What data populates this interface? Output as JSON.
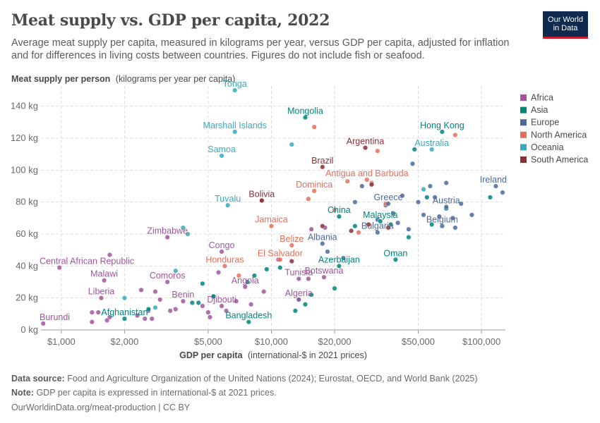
{
  "header": {
    "title": "Meat supply vs. GDP per capita, 2022",
    "subtitle": "Average meat supply per capita, measured in kilograms per year, versus GDP per capita, adjusted for inflation and for differences in living costs between countries. Figures do not include fish or seafood.",
    "logo_line1": "Our World",
    "logo_line2": "in Data"
  },
  "footer": {
    "source_label": "Data source:",
    "source_text": "Food and Agriculture Organization of the United Nations (2024); Eurostat, OECD, and World Bank (2025)",
    "note_label": "Note:",
    "note_text": "GDP per capita is expressed in international-$ at 2021 prices.",
    "url": "OurWorldinData.org/meat-production | CC BY"
  },
  "chart_data": {
    "type": "scatter",
    "title": "Meat supply vs. GDP per capita, 2022",
    "ylabel_bold": "Meat supply per person",
    "ylabel_unit": "(kilograms per year per capita)",
    "xlabel_bold": "GDP per capita",
    "xlabel_unit": "(international-$ in 2021 prices)",
    "x_scale": "log",
    "xlim": [
      800,
      130000
    ],
    "ylim": [
      0,
      150
    ],
    "x_ticks": [
      1000,
      2000,
      5000,
      10000,
      20000,
      50000,
      100000
    ],
    "x_tick_labels": [
      "$1,000",
      "$2,000",
      "$5,000",
      "$10,000",
      "$20,000",
      "$50,000",
      "$100,000"
    ],
    "y_ticks": [
      0,
      20,
      40,
      60,
      80,
      100,
      120,
      140
    ],
    "y_tick_labels": [
      "0 kg",
      "20 kg",
      "40 kg",
      "60 kg",
      "80 kg",
      "100 kg",
      "120 kg",
      "140 kg"
    ],
    "grid": true,
    "legend_position": "right",
    "regions": [
      {
        "name": "Africa",
        "color": "#a2559c"
      },
      {
        "name": "Asia",
        "color": "#00847e"
      },
      {
        "name": "Europe",
        "color": "#4c6a9c"
      },
      {
        "name": "North America",
        "color": "#e56e5a"
      },
      {
        "name": "Oceania",
        "color": "#38aaba"
      },
      {
        "name": "South America",
        "color": "#883039"
      }
    ],
    "labeled_points": [
      {
        "label": "Tonga",
        "x": 6700,
        "y": 150,
        "region": "Oceania"
      },
      {
        "label": "Mongolia",
        "x": 14500,
        "y": 133,
        "region": "Asia"
      },
      {
        "label": "Marshall Islands",
        "x": 6700,
        "y": 124,
        "region": "Oceania"
      },
      {
        "label": "Hong Kong",
        "x": 65000,
        "y": 124,
        "region": "Asia"
      },
      {
        "label": "Argentina",
        "x": 28000,
        "y": 114,
        "region": "South America"
      },
      {
        "label": "Australia",
        "x": 58000,
        "y": 113,
        "region": "Oceania"
      },
      {
        "label": "Samoa",
        "x": 5800,
        "y": 109,
        "region": "Oceania"
      },
      {
        "label": "Brazil",
        "x": 17500,
        "y": 102,
        "region": "South America"
      },
      {
        "label": "Antigua and Barbuda",
        "x": 28500,
        "y": 94,
        "region": "North America"
      },
      {
        "label": "Ireland",
        "x": 117000,
        "y": 90,
        "region": "Europe"
      },
      {
        "label": "Dominica",
        "x": 16000,
        "y": 87,
        "region": "North America"
      },
      {
        "label": "Bolivia",
        "x": 9000,
        "y": 81,
        "region": "South America"
      },
      {
        "label": "Greece",
        "x": 36000,
        "y": 79,
        "region": "Europe"
      },
      {
        "label": "Austria",
        "x": 68000,
        "y": 77,
        "region": "Europe"
      },
      {
        "label": "Tuvalu",
        "x": 6200,
        "y": 78,
        "region": "Oceania"
      },
      {
        "label": "China",
        "x": 21000,
        "y": 71,
        "region": "Asia"
      },
      {
        "label": "Malaysia",
        "x": 33000,
        "y": 68,
        "region": "Asia"
      },
      {
        "label": "Belgium",
        "x": 65000,
        "y": 65,
        "region": "Europe"
      },
      {
        "label": "Jamaica",
        "x": 10000,
        "y": 65,
        "region": "North America"
      },
      {
        "label": "Bulgaria",
        "x": 32000,
        "y": 61,
        "region": "Europe"
      },
      {
        "label": "Zimbabwe",
        "x": 3200,
        "y": 58,
        "region": "Africa"
      },
      {
        "label": "Albania",
        "x": 17500,
        "y": 54,
        "region": "Europe"
      },
      {
        "label": "Belize",
        "x": 12500,
        "y": 53,
        "region": "North America"
      },
      {
        "label": "Congo",
        "x": 5800,
        "y": 49,
        "region": "Africa"
      },
      {
        "label": "Oman",
        "x": 39000,
        "y": 44,
        "region": "Asia"
      },
      {
        "label": "El Salvador",
        "x": 11000,
        "y": 44,
        "region": "North America"
      },
      {
        "label": "Honduras",
        "x": 6000,
        "y": 40,
        "region": "North America"
      },
      {
        "label": "Azerbaijan",
        "x": 21000,
        "y": 40,
        "region": "Asia"
      },
      {
        "label": "Central African Republic",
        "x": 980,
        "y": 39,
        "region": "Africa"
      },
      {
        "label": "Botswana",
        "x": 17800,
        "y": 33,
        "region": "Africa"
      },
      {
        "label": "Tunisia",
        "x": 13500,
        "y": 32,
        "region": "Africa"
      },
      {
        "label": "Malawi",
        "x": 1600,
        "y": 31,
        "region": "Africa"
      },
      {
        "label": "Comoros",
        "x": 3200,
        "y": 30,
        "region": "Africa"
      },
      {
        "label": "Angola",
        "x": 7500,
        "y": 27,
        "region": "Africa"
      },
      {
        "label": "Liberia",
        "x": 1550,
        "y": 20,
        "region": "Africa"
      },
      {
        "label": "Algeria",
        "x": 13500,
        "y": 19,
        "region": "Africa"
      },
      {
        "label": "Benin",
        "x": 3800,
        "y": 18,
        "region": "Africa"
      },
      {
        "label": "Djibouti",
        "x": 5800,
        "y": 15,
        "region": "Africa"
      },
      {
        "label": "Afghanistan",
        "x": 2000,
        "y": 7,
        "region": "Asia"
      },
      {
        "label": "Bangladesh",
        "x": 7800,
        "y": 5,
        "region": "Asia"
      },
      {
        "label": "Burundi",
        "x": 820,
        "y": 4,
        "region": "Africa"
      }
    ],
    "unlabeled_points": [
      {
        "x": 1400,
        "y": 5,
        "region": "Africa"
      },
      {
        "x": 1400,
        "y": 11,
        "region": "Africa"
      },
      {
        "x": 1500,
        "y": 11,
        "region": "Africa"
      },
      {
        "x": 1650,
        "y": 6,
        "region": "Africa"
      },
      {
        "x": 1700,
        "y": 8,
        "region": "Africa"
      },
      {
        "x": 1700,
        "y": 47,
        "region": "Africa"
      },
      {
        "x": 2300,
        "y": 9,
        "region": "Africa"
      },
      {
        "x": 2400,
        "y": 25,
        "region": "Africa"
      },
      {
        "x": 2500,
        "y": 7,
        "region": "Africa"
      },
      {
        "x": 2600,
        "y": 12,
        "region": "Africa"
      },
      {
        "x": 2700,
        "y": 7,
        "region": "Africa"
      },
      {
        "x": 2800,
        "y": 24,
        "region": "Africa"
      },
      {
        "x": 2950,
        "y": 19,
        "region": "Africa"
      },
      {
        "x": 3300,
        "y": 12,
        "region": "Africa"
      },
      {
        "x": 3500,
        "y": 13,
        "region": "Africa"
      },
      {
        "x": 4700,
        "y": 15,
        "region": "Africa"
      },
      {
        "x": 5000,
        "y": 11,
        "region": "Africa"
      },
      {
        "x": 5100,
        "y": 8,
        "region": "Africa"
      },
      {
        "x": 5300,
        "y": 21,
        "region": "Africa"
      },
      {
        "x": 5600,
        "y": 36,
        "region": "Africa"
      },
      {
        "x": 6100,
        "y": 12,
        "region": "Africa"
      },
      {
        "x": 6800,
        "y": 18,
        "region": "Africa"
      },
      {
        "x": 8000,
        "y": 16,
        "region": "Africa"
      },
      {
        "x": 9200,
        "y": 24,
        "region": "Africa"
      },
      {
        "x": 10800,
        "y": 44,
        "region": "Africa"
      },
      {
        "x": 15000,
        "y": 32,
        "region": "Africa"
      },
      {
        "x": 15500,
        "y": 63,
        "region": "Africa"
      },
      {
        "x": 18000,
        "y": 64,
        "region": "Africa"
      },
      {
        "x": 2600,
        "y": 13,
        "region": "Asia"
      },
      {
        "x": 4200,
        "y": 17,
        "region": "Asia"
      },
      {
        "x": 4500,
        "y": 17,
        "region": "Asia"
      },
      {
        "x": 4700,
        "y": 29,
        "region": "Asia"
      },
      {
        "x": 5300,
        "y": 21,
        "region": "Asia"
      },
      {
        "x": 7700,
        "y": 30,
        "region": "Asia"
      },
      {
        "x": 8300,
        "y": 34,
        "region": "Asia"
      },
      {
        "x": 9500,
        "y": 38,
        "region": "Asia"
      },
      {
        "x": 11000,
        "y": 39,
        "region": "Asia"
      },
      {
        "x": 13000,
        "y": 12,
        "region": "Asia"
      },
      {
        "x": 13500,
        "y": 19,
        "region": "Asia"
      },
      {
        "x": 14500,
        "y": 16,
        "region": "Asia"
      },
      {
        "x": 15500,
        "y": 22,
        "region": "Asia"
      },
      {
        "x": 20000,
        "y": 26,
        "region": "Asia"
      },
      {
        "x": 25000,
        "y": 65,
        "region": "Asia"
      },
      {
        "x": 37000,
        "y": 66,
        "region": "Asia"
      },
      {
        "x": 45000,
        "y": 58,
        "region": "Asia"
      },
      {
        "x": 48000,
        "y": 113,
        "region": "Asia"
      },
      {
        "x": 55000,
        "y": 83,
        "region": "Asia"
      },
      {
        "x": 58000,
        "y": 66,
        "region": "Asia"
      },
      {
        "x": 68000,
        "y": 76,
        "region": "Asia"
      },
      {
        "x": 110000,
        "y": 83,
        "region": "Asia"
      },
      {
        "x": 18500,
        "y": 49,
        "region": "Europe"
      },
      {
        "x": 22000,
        "y": 45,
        "region": "Europe"
      },
      {
        "x": 25000,
        "y": 80,
        "region": "Europe"
      },
      {
        "x": 27000,
        "y": 90,
        "region": "Europe"
      },
      {
        "x": 32000,
        "y": 69,
        "region": "Europe"
      },
      {
        "x": 35000,
        "y": 78,
        "region": "Europe"
      },
      {
        "x": 38000,
        "y": 73,
        "region": "Europe"
      },
      {
        "x": 40000,
        "y": 67,
        "region": "Europe"
      },
      {
        "x": 42000,
        "y": 84,
        "region": "Europe"
      },
      {
        "x": 45000,
        "y": 63,
        "region": "Europe"
      },
      {
        "x": 47000,
        "y": 104,
        "region": "Europe"
      },
      {
        "x": 50000,
        "y": 80,
        "region": "Europe"
      },
      {
        "x": 53000,
        "y": 72,
        "region": "Europe"
      },
      {
        "x": 57000,
        "y": 90,
        "region": "Europe"
      },
      {
        "x": 60000,
        "y": 83,
        "region": "Europe"
      },
      {
        "x": 63000,
        "y": 71,
        "region": "Europe"
      },
      {
        "x": 68000,
        "y": 92,
        "region": "Europe"
      },
      {
        "x": 73000,
        "y": 70,
        "region": "Europe"
      },
      {
        "x": 75000,
        "y": 64,
        "region": "Europe"
      },
      {
        "x": 80000,
        "y": 79,
        "region": "Europe"
      },
      {
        "x": 90000,
        "y": 72,
        "region": "Europe"
      },
      {
        "x": 126000,
        "y": 86,
        "region": "Europe"
      },
      {
        "x": 15000,
        "y": 82,
        "region": "North America"
      },
      {
        "x": 20000,
        "y": 75,
        "region": "North America"
      },
      {
        "x": 23000,
        "y": 93,
        "region": "North America"
      },
      {
        "x": 26000,
        "y": 61,
        "region": "North America"
      },
      {
        "x": 30000,
        "y": 92,
        "region": "North America"
      },
      {
        "x": 32000,
        "y": 112,
        "region": "North America"
      },
      {
        "x": 35000,
        "y": 79,
        "region": "North America"
      },
      {
        "x": 75000,
        "y": 122,
        "region": "North America"
      },
      {
        "x": 7000,
        "y": 34,
        "region": "North America"
      },
      {
        "x": 16000,
        "y": 127,
        "region": "North America"
      },
      {
        "x": 2000,
        "y": 20,
        "region": "Oceania"
      },
      {
        "x": 2800,
        "y": 14,
        "region": "Oceania"
      },
      {
        "x": 3500,
        "y": 37,
        "region": "Oceania"
      },
      {
        "x": 3800,
        "y": 64,
        "region": "Oceania"
      },
      {
        "x": 4000,
        "y": 60,
        "region": "Oceania"
      },
      {
        "x": 12500,
        "y": 116,
        "region": "Oceania"
      },
      {
        "x": 53000,
        "y": 88,
        "region": "Oceania"
      },
      {
        "x": 9000,
        "y": 81,
        "region": "South America"
      },
      {
        "x": 12500,
        "y": 43,
        "region": "South America"
      },
      {
        "x": 17500,
        "y": 65,
        "region": "South America"
      },
      {
        "x": 24000,
        "y": 62,
        "region": "South America"
      },
      {
        "x": 29000,
        "y": 66,
        "region": "South America"
      },
      {
        "x": 30000,
        "y": 91,
        "region": "South America"
      },
      {
        "x": 36000,
        "y": 64,
        "region": "South America"
      }
    ]
  }
}
